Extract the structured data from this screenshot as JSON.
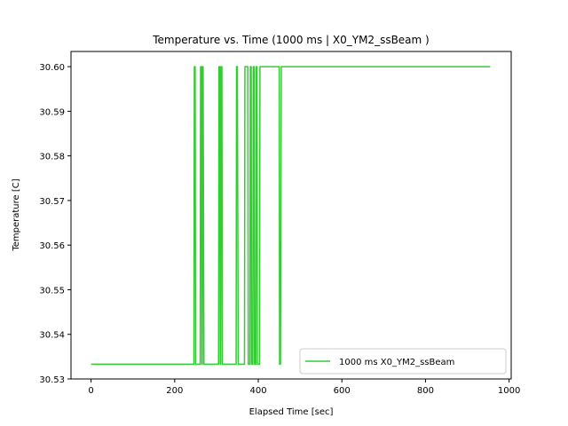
{
  "chart_data": {
    "type": "line",
    "title": "Temperature vs. Time (1000 ms | X0_YM2_ssBeam )",
    "xlabel": "Elapsed Time [sec]",
    "ylabel": "Temperature [C]",
    "xlim": [
      -48,
      1005
    ],
    "ylim": [
      30.53,
      30.6034
    ],
    "xticks": [
      0,
      200,
      400,
      600,
      800,
      1000
    ],
    "yticks": [
      30.53,
      30.54,
      30.55,
      30.56,
      30.57,
      30.58,
      30.59,
      30.6
    ],
    "xtick_labels": [
      "0",
      "200",
      "400",
      "600",
      "800",
      "1000"
    ],
    "ytick_labels": [
      "30.53",
      "30.54",
      "30.55",
      "30.56",
      "30.57",
      "30.58",
      "30.59",
      "30.60"
    ],
    "grid": false,
    "legend_position": "lower right",
    "series": [
      {
        "name": "1000 ms X0_YM2_ssBeam",
        "color": "#33cc33",
        "x": [
          0,
          246,
          247,
          249,
          250,
          261,
          262,
          264,
          265,
          266,
          267,
          268,
          270,
          271,
          305,
          306,
          308,
          309,
          310,
          311,
          313,
          314,
          316,
          318,
          347,
          348,
          350,
          352,
          367,
          368,
          375,
          376,
          380,
          381,
          383,
          384,
          387,
          388,
          390,
          391,
          394,
          395,
          397,
          398,
          403,
          404,
          406,
          407,
          450,
          451,
          453,
          455,
          955
        ],
        "y": [
          30.5333,
          30.5333,
          30.6,
          30.6,
          30.5333,
          30.5333,
          30.6,
          30.6,
          30.5333,
          30.5333,
          30.6,
          30.6,
          30.5333,
          30.5333,
          30.5333,
          30.6,
          30.6,
          30.5333,
          30.5333,
          30.6,
          30.6,
          30.5333,
          30.5333,
          30.5333,
          30.5333,
          30.6,
          30.6,
          30.5333,
          30.5333,
          30.6,
          30.6,
          30.5333,
          30.5333,
          30.6,
          30.6,
          30.5333,
          30.5333,
          30.6,
          30.6,
          30.5333,
          30.5333,
          30.6,
          30.6,
          30.5333,
          30.5333,
          30.6,
          30.6,
          30.6,
          30.6,
          30.5333,
          30.5333,
          30.6,
          30.6
        ]
      }
    ]
  }
}
